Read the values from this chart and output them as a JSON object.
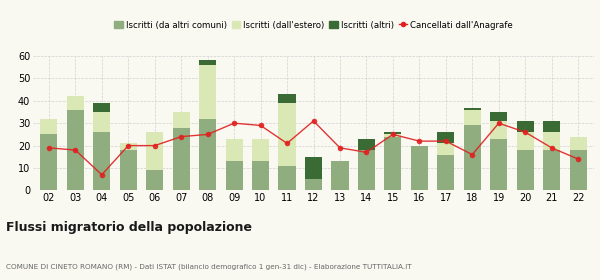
{
  "years": [
    "02",
    "03",
    "04",
    "05",
    "06",
    "07",
    "08",
    "09",
    "10",
    "11",
    "12",
    "13",
    "14",
    "15",
    "16",
    "17",
    "18",
    "19",
    "20",
    "21",
    "22"
  ],
  "altri_comuni": [
    25,
    36,
    26,
    18,
    9,
    28,
    32,
    13,
    13,
    11,
    5,
    13,
    18,
    24,
    20,
    16,
    29,
    23,
    18,
    18,
    18
  ],
  "estero": [
    7,
    6,
    9,
    3,
    17,
    7,
    24,
    10,
    10,
    28,
    0,
    0,
    0,
    1,
    0,
    5,
    7,
    8,
    8,
    8,
    6
  ],
  "altri": [
    0,
    0,
    4,
    0,
    0,
    0,
    2,
    0,
    0,
    4,
    10,
    0,
    5,
    1,
    0,
    5,
    1,
    4,
    5,
    5,
    0
  ],
  "cancellati": [
    19,
    18,
    7,
    20,
    20,
    24,
    25,
    30,
    29,
    21,
    31,
    19,
    17,
    25,
    22,
    22,
    16,
    30,
    26,
    19,
    14
  ],
  "color_altri_comuni": "#8fad7f",
  "color_estero": "#d9e8b4",
  "color_altri": "#3a6b35",
  "color_cancellati": "#e02020",
  "color_grid": "#d0d0d0",
  "ylim": [
    0,
    60
  ],
  "yticks": [
    0,
    10,
    20,
    30,
    40,
    50,
    60
  ],
  "title": "Flussi migratorio della popolazione",
  "subtitle": "COMUNE DI CINETO ROMANO (RM) - Dati ISTAT (bilancio demografico 1 gen-31 dic) - Elaborazione TUTTITALIA.IT",
  "legend_labels": [
    "Iscritti (da altri comuni)",
    "Iscritti (dall'estero)",
    "Iscritti (altri)",
    "Cancellati dall'Anagrafe"
  ],
  "bg_color": "#f9f9f2"
}
